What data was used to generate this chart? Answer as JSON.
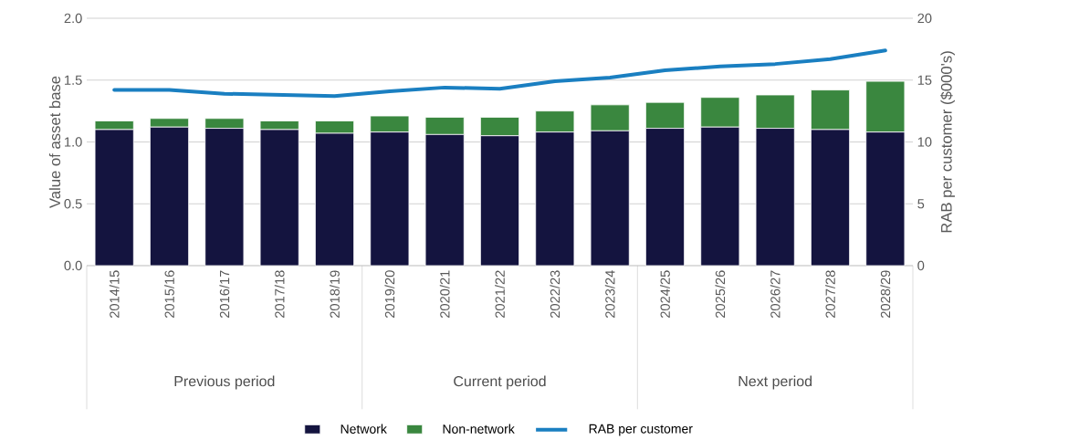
{
  "chart_data": {
    "type": "bar",
    "stacked": true,
    "ylabel": "Value of asset base",
    "y2label": "RAB per customer ($000's)",
    "categories": [
      "2014/15",
      "2015/16",
      "2016/17",
      "2017/18",
      "2018/19",
      "2019/20",
      "2020/21",
      "2021/22",
      "2022/23",
      "2023/24",
      "2024/25",
      "2025/26",
      "2026/27",
      "2027/28",
      "2028/29"
    ],
    "series": [
      {
        "name": "Network",
        "color": "#14143f",
        "values": [
          1.1,
          1.12,
          1.11,
          1.1,
          1.07,
          1.08,
          1.06,
          1.05,
          1.08,
          1.09,
          1.11,
          1.12,
          1.11,
          1.1,
          1.08
        ]
      },
      {
        "name": "Non-network",
        "color": "#3a873f",
        "values": [
          0.07,
          0.07,
          0.08,
          0.07,
          0.1,
          0.13,
          0.14,
          0.15,
          0.17,
          0.21,
          0.21,
          0.24,
          0.27,
          0.32,
          0.41
        ]
      },
      {
        "name": "RAB per customer",
        "type": "line",
        "axis": "y2",
        "color": "#1a7fc1",
        "line_style": "solid",
        "marker": "none",
        "values": [
          14.2,
          14.2,
          13.9,
          13.8,
          13.7,
          14.1,
          14.4,
          14.3,
          14.9,
          15.2,
          15.8,
          16.1,
          16.3,
          16.7,
          17.4
        ]
      }
    ],
    "ylim": [
      0,
      2
    ],
    "yticks": [
      {
        "value": 0,
        "label": "0.0"
      },
      {
        "value": 0.5,
        "label": "0.5"
      },
      {
        "value": 1,
        "label": "1.0"
      },
      {
        "value": 1.5,
        "label": "1.5"
      },
      {
        "value": 2,
        "label": "2.0"
      }
    ],
    "y2lim": [
      0,
      20
    ],
    "y2ticks": [
      0,
      5,
      10,
      15,
      20
    ],
    "grid": "y",
    "legend": "bottom",
    "annotations": [
      "Previous period",
      "Current period",
      "Next period"
    ]
  }
}
